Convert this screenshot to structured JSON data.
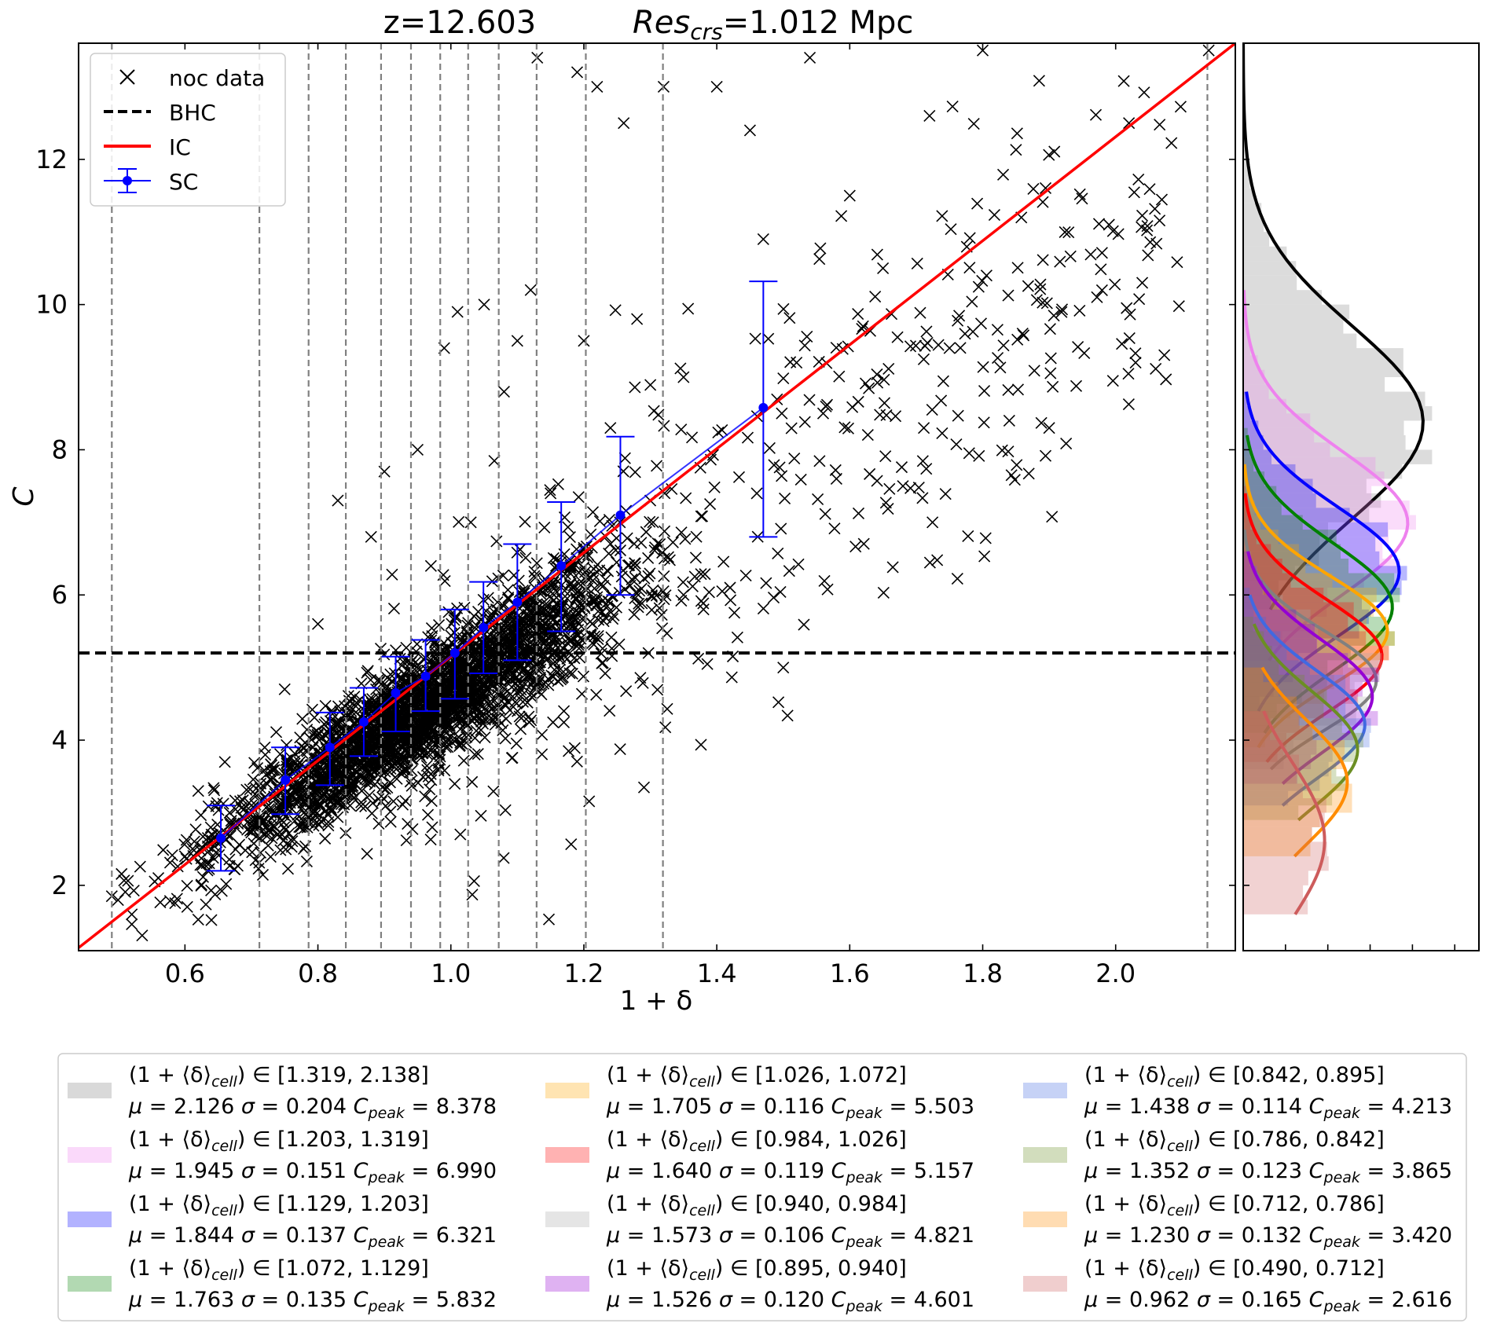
{
  "title": {
    "left": "z=12.603",
    "res_symbol": "Res",
    "res_subscript": "crs",
    "res_value": "=1.012 Mpc"
  },
  "chart_data": [
    {
      "type": "scatter",
      "panel": "main",
      "xlabel": "1 + δ",
      "ylabel": "C",
      "xlim": [
        0.44,
        2.18
      ],
      "ylim": [
        1.1,
        13.6
      ],
      "xticks": [
        "0.6",
        "0.8",
        "1.0",
        "1.2",
        "1.4",
        "1.6",
        "1.8",
        "2.0"
      ],
      "yticks": [
        "2",
        "4",
        "6",
        "8",
        "10",
        "12"
      ],
      "legend_position": "upper-left",
      "legend": [
        "noc data",
        "BHC",
        "IC",
        "SC"
      ],
      "series": [
        {
          "name": "noc data",
          "kind": "scatter-cloud",
          "marker": "x",
          "color": "#000000",
          "trend": {
            "slope": 5.9,
            "intercept": -1.24
          },
          "samples": [
            [
              0.49,
              1.85
            ],
            [
              0.52,
              1.6
            ],
            [
              0.56,
              2.1
            ],
            [
              0.6,
              2.4
            ],
            [
              0.62,
              3.3
            ],
            [
              0.64,
              2.7
            ],
            [
              0.66,
              3.7
            ],
            [
              0.7,
              3.1
            ],
            [
              0.72,
              3.9
            ],
            [
              0.75,
              4.7
            ],
            [
              0.77,
              3.4
            ],
            [
              0.8,
              5.6
            ],
            [
              0.83,
              7.3
            ],
            [
              0.85,
              4.4
            ],
            [
              0.88,
              6.8
            ],
            [
              0.9,
              7.7
            ],
            [
              0.93,
              4.7
            ],
            [
              0.95,
              8.0
            ],
            [
              0.97,
              6.4
            ],
            [
              0.99,
              9.4
            ],
            [
              1.0,
              5.2
            ],
            [
              1.01,
              9.9
            ],
            [
              1.03,
              7.0
            ],
            [
              1.05,
              10.0
            ],
            [
              1.07,
              5.9
            ],
            [
              1.08,
              8.8
            ],
            [
              1.1,
              9.5
            ],
            [
              1.12,
              10.2
            ],
            [
              1.13,
              13.4
            ],
            [
              1.15,
              7.4
            ],
            [
              1.17,
              4.4
            ],
            [
              1.19,
              13.2
            ],
            [
              1.2,
              9.5
            ],
            [
              1.22,
              13.0
            ],
            [
              1.24,
              8.3
            ],
            [
              1.26,
              12.5
            ],
            [
              1.28,
              9.8
            ],
            [
              1.3,
              7.3
            ],
            [
              1.32,
              13.0
            ],
            [
              1.35,
              9.0
            ],
            [
              1.38,
              5.8
            ],
            [
              1.4,
              13.0
            ],
            [
              1.42,
              6.1
            ],
            [
              1.45,
              12.4
            ],
            [
              1.47,
              10.9
            ],
            [
              1.5,
              5.0
            ],
            [
              1.52,
              9.2
            ],
            [
              1.54,
              13.4
            ],
            [
              1.56,
              8.5
            ],
            [
              1.58,
              7.6
            ],
            [
              1.6,
              11.5
            ],
            [
              1.62,
              9.7
            ],
            [
              1.65,
              10.5
            ],
            [
              1.68,
              7.5
            ],
            [
              1.72,
              12.6
            ],
            [
              1.75,
              9.4
            ],
            [
              1.8,
              13.5
            ],
            [
              1.84,
              8.4
            ],
            [
              1.86,
              9.6
            ],
            [
              1.9,
              8.3
            ],
            [
              1.99,
              11.1
            ],
            [
              2.02,
              12.5
            ],
            [
              2.03,
              9.2
            ],
            [
              2.04,
              10.3
            ],
            [
              2.14,
              13.5
            ]
          ]
        },
        {
          "name": "BHC",
          "kind": "hline",
          "style": "dashed",
          "color": "#000000",
          "y": 5.2
        },
        {
          "name": "IC",
          "kind": "line",
          "color": "#ff0000",
          "x": [
            0.44,
            2.18
          ],
          "y": [
            1.14,
            13.6
          ]
        },
        {
          "name": "SC",
          "kind": "errorbar",
          "color": "#0000ff",
          "x": [
            0.654,
            0.751,
            0.818,
            0.869,
            0.917,
            0.962,
            1.006,
            1.049,
            1.1,
            1.166,
            1.255,
            1.47
          ],
          "y": [
            2.65,
            3.45,
            3.9,
            4.25,
            4.65,
            4.88,
            5.2,
            5.55,
            5.9,
            6.4,
            7.1,
            8.58
          ],
          "yerr_low": [
            2.2,
            2.98,
            3.38,
            3.78,
            4.12,
            4.4,
            4.57,
            4.92,
            5.1,
            5.5,
            6.0,
            6.8
          ],
          "yerr_high": [
            3.1,
            3.9,
            4.38,
            4.72,
            5.15,
            5.38,
            5.8,
            6.18,
            6.7,
            7.28,
            8.18,
            10.32
          ]
        }
      ],
      "vlines": {
        "style": "dashed",
        "color": "#808080",
        "x": [
          0.49,
          0.712,
          0.786,
          0.842,
          0.895,
          0.94,
          0.984,
          1.026,
          1.072,
          1.129,
          1.203,
          1.319,
          2.138
        ]
      }
    },
    {
      "type": "area",
      "panel": "side-histograms",
      "orientation": "horizontal",
      "note_axis": "shares y-axis C with main panel",
      "series": [
        {
          "color": "#808080",
          "line": "#000000",
          "mu": 2.126,
          "sigma": 0.204,
          "peak": 8.378,
          "range": [
            5.8,
            13.6
          ]
        },
        {
          "color": "#ee82ee",
          "line": "#ee82ee",
          "mu": 1.945,
          "sigma": 0.151,
          "peak": 6.99,
          "range": [
            5.1,
            10.2
          ]
        },
        {
          "color": "#0000ff",
          "line": "#0000ff",
          "mu": 1.844,
          "sigma": 0.137,
          "peak": 6.321,
          "range": [
            4.4,
            8.8
          ]
        },
        {
          "color": "#008000",
          "line": "#008000",
          "mu": 1.763,
          "sigma": 0.135,
          "peak": 5.832,
          "range": [
            4.1,
            8.2
          ]
        },
        {
          "color": "#ffa500",
          "line": "#ffa500",
          "mu": 1.705,
          "sigma": 0.116,
          "peak": 5.503,
          "range": [
            3.9,
            7.8
          ]
        },
        {
          "color": "#ff0000",
          "line": "#ff0000",
          "mu": 1.64,
          "sigma": 0.119,
          "peak": 5.157,
          "range": [
            3.7,
            7.4
          ]
        },
        {
          "color": "#a9a9a9",
          "line": "#808080",
          "mu": 1.573,
          "sigma": 0.106,
          "peak": 4.821,
          "range": [
            3.6,
            6.9
          ]
        },
        {
          "color": "#9400d3",
          "line": "#9400d3",
          "mu": 1.526,
          "sigma": 0.12,
          "peak": 4.601,
          "range": [
            3.4,
            6.6
          ]
        },
        {
          "color": "#4169e1",
          "line": "#4169e1",
          "mu": 1.438,
          "sigma": 0.114,
          "peak": 4.213,
          "range": [
            3.1,
            6.0
          ]
        },
        {
          "color": "#6b8e23",
          "line": "#6b8e23",
          "mu": 1.352,
          "sigma": 0.123,
          "peak": 3.865,
          "range": [
            2.9,
            5.6
          ]
        },
        {
          "color": "#ff8c00",
          "line": "#ff8c00",
          "mu": 1.23,
          "sigma": 0.132,
          "peak": 3.42,
          "range": [
            2.4,
            5.0
          ]
        },
        {
          "color": "#cd5c5c",
          "line": "#cd5c5c",
          "mu": 0.962,
          "sigma": 0.165,
          "peak": 2.616,
          "range": [
            1.6,
            4.4
          ]
        }
      ]
    }
  ],
  "legend2": {
    "label_prefix": "(1 + ⟨δ⟩",
    "label_sub": "cell",
    "label_mid": ") ∈ ",
    "mu_label": "μ = ",
    "sigma_label": "σ = ",
    "cpeak_label": "C",
    "cpeak_sub": "peak",
    "cpeak_eq": " = ",
    "entries": [
      {
        "range": "[1.319, 2.138]",
        "mu": "2.126",
        "sigma": "0.204",
        "cpeak": "8.378",
        "color": "#808080"
      },
      {
        "range": "[1.203, 1.319]",
        "mu": "1.945",
        "sigma": "0.151",
        "cpeak": "6.990",
        "color": "#ee82ee"
      },
      {
        "range": "[1.129, 1.203]",
        "mu": "1.844",
        "sigma": "0.137",
        "cpeak": "6.321",
        "color": "#0000ff"
      },
      {
        "range": "[1.072, 1.129]",
        "mu": "1.763",
        "sigma": "0.135",
        "cpeak": "5.832",
        "color": "#008000"
      },
      {
        "range": "[1.026, 1.072]",
        "mu": "1.705",
        "sigma": "0.116",
        "cpeak": "5.503",
        "color": "#ffa500"
      },
      {
        "range": "[0.984, 1.026]",
        "mu": "1.640",
        "sigma": "0.119",
        "cpeak": "5.157",
        "color": "#ff0000"
      },
      {
        "range": "[0.940, 0.984]",
        "mu": "1.573",
        "sigma": "0.106",
        "cpeak": "4.821",
        "color": "#a9a9a9"
      },
      {
        "range": "[0.895, 0.940]",
        "mu": "1.526",
        "sigma": "0.120",
        "cpeak": "4.601",
        "color": "#9400d3"
      },
      {
        "range": "[0.842, 0.895]",
        "mu": "1.438",
        "sigma": "0.114",
        "cpeak": "4.213",
        "color": "#4169e1"
      },
      {
        "range": "[0.786, 0.842]",
        "mu": "1.352",
        "sigma": "0.123",
        "cpeak": "3.865",
        "color": "#6b8e23"
      },
      {
        "range": "[0.712, 0.786]",
        "mu": "1.230",
        "sigma": "0.132",
        "cpeak": "3.420",
        "color": "#ff8c00"
      },
      {
        "range": "[0.490, 0.712]",
        "mu": "0.962",
        "sigma": "0.165",
        "cpeak": "2.616",
        "color": "#cd5c5c"
      }
    ]
  }
}
